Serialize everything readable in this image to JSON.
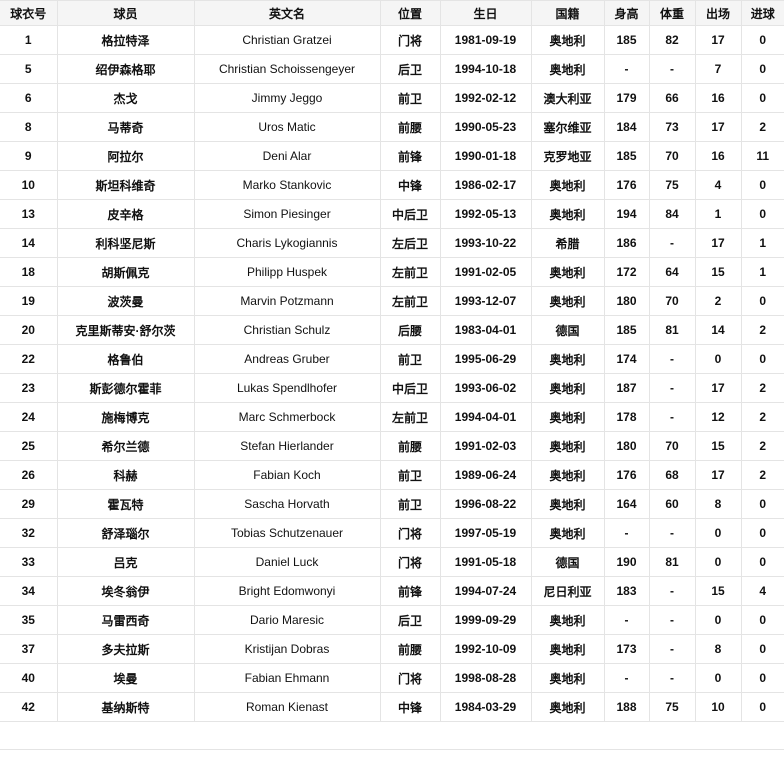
{
  "table": {
    "headers": [
      "球衣号",
      "球员",
      "英文名",
      "位置",
      "生日",
      "国籍",
      "身高",
      "体重",
      "出场",
      "进球"
    ],
    "rows": [
      [
        "1",
        "格拉特泽",
        "Christian Gratzei",
        "门将",
        "1981-09-19",
        "奥地利",
        "185",
        "82",
        "17",
        "0"
      ],
      [
        "5",
        "绍伊森格耶",
        "Christian Schoissengeyer",
        "后卫",
        "1994-10-18",
        "奥地利",
        "-",
        "-",
        "7",
        "0"
      ],
      [
        "6",
        "杰戈",
        "Jimmy Jeggo",
        "前卫",
        "1992-02-12",
        "澳大利亚",
        "179",
        "66",
        "16",
        "0"
      ],
      [
        "8",
        "马蒂奇",
        "Uros Matic",
        "前腰",
        "1990-05-23",
        "塞尔维亚",
        "184",
        "73",
        "17",
        "2"
      ],
      [
        "9",
        "阿拉尔",
        "Deni Alar",
        "前锋",
        "1990-01-18",
        "克罗地亚",
        "185",
        "70",
        "16",
        "11"
      ],
      [
        "10",
        "斯坦科维奇",
        "Marko Stankovic",
        "中锋",
        "1986-02-17",
        "奥地利",
        "176",
        "75",
        "4",
        "0"
      ],
      [
        "13",
        "皮辛格",
        "Simon Piesinger",
        "中后卫",
        "1992-05-13",
        "奥地利",
        "194",
        "84",
        "1",
        "0"
      ],
      [
        "14",
        "利科坚尼斯",
        "Charis Lykogiannis",
        "左后卫",
        "1993-10-22",
        "希腊",
        "186",
        "-",
        "17",
        "1"
      ],
      [
        "18",
        "胡斯佩克",
        "Philipp Huspek",
        "左前卫",
        "1991-02-05",
        "奥地利",
        "172",
        "64",
        "15",
        "1"
      ],
      [
        "19",
        "波茨曼",
        "Marvin Potzmann",
        "左前卫",
        "1993-12-07",
        "奥地利",
        "180",
        "70",
        "2",
        "0"
      ],
      [
        "20",
        "克里斯蒂安·舒尔茨",
        "Christian Schulz",
        "后腰",
        "1983-04-01",
        "德国",
        "185",
        "81",
        "14",
        "2"
      ],
      [
        "22",
        "格鲁伯",
        "Andreas Gruber",
        "前卫",
        "1995-06-29",
        "奥地利",
        "174",
        "-",
        "0",
        "0"
      ],
      [
        "23",
        "斯彭德尔霍菲",
        "Lukas Spendlhofer",
        "中后卫",
        "1993-06-02",
        "奥地利",
        "187",
        "-",
        "17",
        "2"
      ],
      [
        "24",
        "施梅博克",
        "Marc Schmerbock",
        "左前卫",
        "1994-04-01",
        "奥地利",
        "178",
        "-",
        "12",
        "2"
      ],
      [
        "25",
        "希尔兰德",
        "Stefan Hierlander",
        "前腰",
        "1991-02-03",
        "奥地利",
        "180",
        "70",
        "15",
        "2"
      ],
      [
        "26",
        "科赫",
        "Fabian Koch",
        "前卫",
        "1989-06-24",
        "奥地利",
        "176",
        "68",
        "17",
        "2"
      ],
      [
        "29",
        "霍瓦特",
        "Sascha Horvath",
        "前卫",
        "1996-08-22",
        "奥地利",
        "164",
        "60",
        "8",
        "0"
      ],
      [
        "32",
        "舒泽瑙尔",
        "Tobias Schutzenauer",
        "门将",
        "1997-05-19",
        "奥地利",
        "-",
        "-",
        "0",
        "0"
      ],
      [
        "33",
        "吕克",
        "Daniel Luck",
        "门将",
        "1991-05-18",
        "德国",
        "190",
        "81",
        "0",
        "0"
      ],
      [
        "34",
        "埃冬翁伊",
        "Bright Edomwonyi",
        "前锋",
        "1994-07-24",
        "尼日利亚",
        "183",
        "-",
        "15",
        "4"
      ],
      [
        "35",
        "马雷西奇",
        "Dario Maresic",
        "后卫",
        "1999-09-29",
        "奥地利",
        "-",
        "-",
        "0",
        "0"
      ],
      [
        "37",
        "多夫拉斯",
        "Kristijan Dobras",
        "前腰",
        "1992-10-09",
        "奥地利",
        "173",
        "-",
        "8",
        "0"
      ],
      [
        "40",
        "埃曼",
        "Fabian Ehmann",
        "门将",
        "1998-08-28",
        "奥地利",
        "-",
        "-",
        "0",
        "0"
      ],
      [
        "42",
        "基纳斯特",
        "Roman Kienast",
        "中锋",
        "1984-03-29",
        "奥地利",
        "188",
        "75",
        "10",
        "0"
      ]
    ]
  }
}
